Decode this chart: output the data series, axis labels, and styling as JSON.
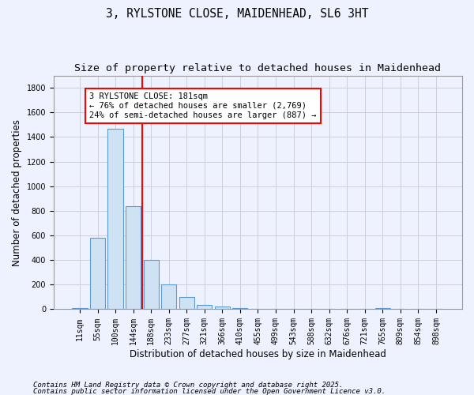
{
  "title_line1": "3, RYLSTONE CLOSE, MAIDENHEAD, SL6 3HT",
  "title_line2": "Size of property relative to detached houses in Maidenhead",
  "xlabel": "Distribution of detached houses by size in Maidenhead",
  "ylabel": "Number of detached properties",
  "categories": [
    "11sqm",
    "55sqm",
    "100sqm",
    "144sqm",
    "188sqm",
    "233sqm",
    "277sqm",
    "321sqm",
    "366sqm",
    "410sqm",
    "455sqm",
    "499sqm",
    "543sqm",
    "588sqm",
    "632sqm",
    "676sqm",
    "721sqm",
    "765sqm",
    "809sqm",
    "854sqm",
    "898sqm"
  ],
  "values": [
    10,
    580,
    1470,
    840,
    400,
    200,
    100,
    35,
    25,
    12,
    5,
    5,
    3,
    2,
    0,
    0,
    0,
    8,
    0,
    0,
    0
  ],
  "bar_color": "#cfe2f3",
  "bar_edge_color": "#5b9bd5",
  "vline_pos": 3.5,
  "vline_color": "red",
  "annotation_text": "3 RYLSTONE CLOSE: 181sqm\n← 76% of detached houses are smaller (2,769)\n24% of semi-detached houses are larger (887) →",
  "annotation_box_color": "white",
  "annotation_box_edge_color": "red",
  "ylim": [
    0,
    1900
  ],
  "yticks": [
    0,
    200,
    400,
    600,
    800,
    1000,
    1200,
    1400,
    1600,
    1800
  ],
  "grid_color": "#c8c8d8",
  "background_color": "#eef2ff",
  "footer_line1": "Contains HM Land Registry data © Crown copyright and database right 2025.",
  "footer_line2": "Contains public sector information licensed under the Open Government Licence v3.0.",
  "title_fontsize": 10.5,
  "subtitle_fontsize": 9.5,
  "axis_label_fontsize": 8.5,
  "tick_fontsize": 7,
  "annotation_fontsize": 7.5,
  "footer_fontsize": 6.5
}
